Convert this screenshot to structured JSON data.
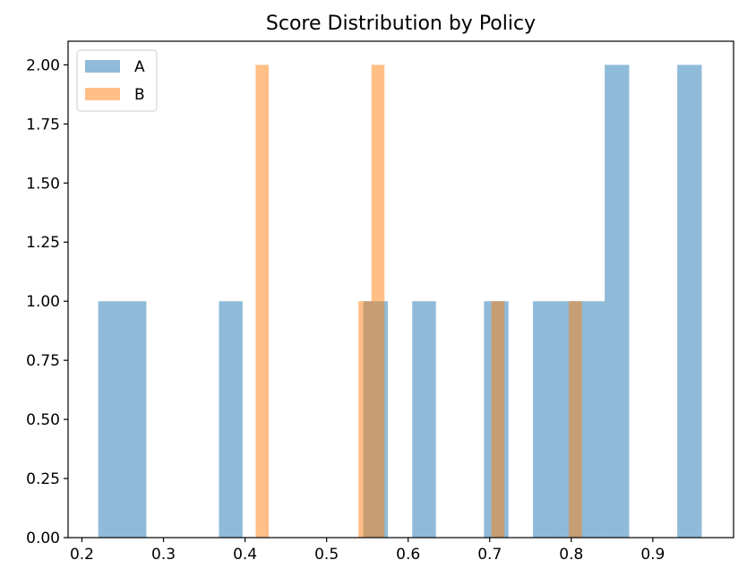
{
  "chart_data": {
    "type": "bar",
    "title": "Score Distribution by Policy",
    "xlabel": "",
    "ylabel": "",
    "xlim": [
      0.183,
      0.999
    ],
    "ylim": [
      0,
      2.1
    ],
    "xticks": [
      "0.2",
      "0.3",
      "0.4",
      "0.5",
      "0.6",
      "0.7",
      "0.8",
      "0.9"
    ],
    "yticks": [
      "0.00",
      "0.25",
      "0.50",
      "0.75",
      "1.00",
      "1.25",
      "1.50",
      "1.75",
      "2.00"
    ],
    "grid": false,
    "legend": {
      "location": "upper left",
      "entries": [
        "A",
        "B"
      ]
    },
    "colors": {
      "A": "#1f77b4",
      "B": "#ff7f0e"
    },
    "series": [
      {
        "name": "A",
        "bins": [
          {
            "x0": 0.22,
            "x1": 0.25,
            "count": 1
          },
          {
            "x0": 0.25,
            "x1": 0.279,
            "count": 1
          },
          {
            "x0": 0.368,
            "x1": 0.397,
            "count": 1
          },
          {
            "x0": 0.545,
            "x1": 0.575,
            "count": 1
          },
          {
            "x0": 0.605,
            "x1": 0.634,
            "count": 1
          },
          {
            "x0": 0.693,
            "x1": 0.723,
            "count": 1
          },
          {
            "x0": 0.753,
            "x1": 0.782,
            "count": 1
          },
          {
            "x0": 0.782,
            "x1": 0.812,
            "count": 1
          },
          {
            "x0": 0.812,
            "x1": 0.841,
            "count": 1
          },
          {
            "x0": 0.841,
            "x1": 0.871,
            "count": 2
          },
          {
            "x0": 0.93,
            "x1": 0.96,
            "count": 2
          }
        ]
      },
      {
        "name": "B",
        "bins": [
          {
            "x0": 0.413,
            "x1": 0.429,
            "count": 2
          },
          {
            "x0": 0.539,
            "x1": 0.555,
            "count": 1
          },
          {
            "x0": 0.555,
            "x1": 0.571,
            "count": 2
          },
          {
            "x0": 0.702,
            "x1": 0.718,
            "count": 1
          },
          {
            "x0": 0.797,
            "x1": 0.813,
            "count": 1
          }
        ]
      }
    ]
  }
}
